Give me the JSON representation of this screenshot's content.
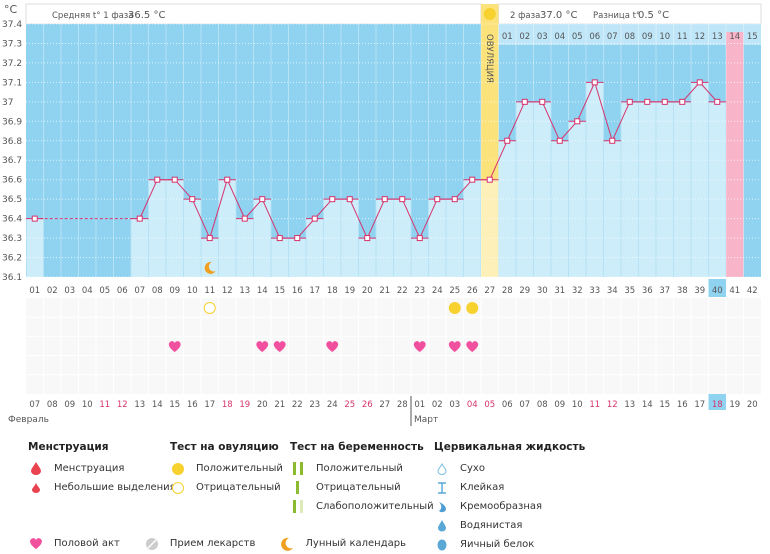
{
  "chart_data": {
    "type": "line",
    "unit_label": "°C",
    "ylim": [
      36.1,
      37.4
    ],
    "yticks": [
      "37.4",
      "37.3",
      "37.2",
      "37.1",
      "37",
      "36.9",
      "36.8",
      "36.7",
      "36.6",
      "36.5",
      "36.4",
      "36.3",
      "36.2",
      "36.1"
    ],
    "cycle_days": [
      "01",
      "02",
      "03",
      "04",
      "05",
      "06",
      "07",
      "08",
      "09",
      "10",
      "11",
      "12",
      "13",
      "14",
      "15",
      "16",
      "17",
      "18",
      "19",
      "20",
      "21",
      "22",
      "23",
      "24",
      "25",
      "26",
      "27",
      "28",
      "29",
      "30",
      "31",
      "32",
      "33",
      "34",
      "35",
      "36",
      "37",
      "38",
      "39",
      "40",
      "41",
      "42"
    ],
    "temperatures": [
      36.4,
      null,
      null,
      null,
      null,
      null,
      36.4,
      36.6,
      36.6,
      36.5,
      36.3,
      36.6,
      36.4,
      36.5,
      36.3,
      36.3,
      36.4,
      36.5,
      36.5,
      36.3,
      36.5,
      36.5,
      36.3,
      36.5,
      36.5,
      36.6,
      36.6,
      36.8,
      37.0,
      37.0,
      36.8,
      36.9,
      37.1,
      36.8,
      37.0,
      37.0,
      37.0,
      37.0,
      37.1,
      37.0,
      null,
      null
    ],
    "ovulation_day": 27,
    "ovulation_label": "ОВУЛЯЦИЯ",
    "luteal_days": [
      "01",
      "02",
      "03",
      "04",
      "05",
      "06",
      "07",
      "08",
      "09",
      "10",
      "11",
      "12",
      "13",
      "14",
      "15"
    ],
    "expected_period_day": 41,
    "today_day": 40,
    "phase1_label": "Средняя t° 1 фаза",
    "phase1_value": "36.5 °C",
    "phase2_label": "2 фаза",
    "phase2_value": "37.0 °C",
    "diff_label": "Разница t°",
    "diff_value": "0.5 °C",
    "moon_days": [
      11
    ],
    "ovulation_test_negative_days": [
      11
    ],
    "ovulation_test_positive_days": [
      25,
      26
    ],
    "intercourse_days": [
      9,
      14,
      15,
      18,
      23,
      25,
      26
    ],
    "dates": [
      "07",
      "08",
      "09",
      "10",
      "11",
      "12",
      "13",
      "14",
      "15",
      "16",
      "17",
      "18",
      "19",
      "20",
      "21",
      "22",
      "23",
      "24",
      "25",
      "26",
      "27",
      "28",
      "01",
      "02",
      "03",
      "04",
      "05",
      "06",
      "07",
      "08",
      "09",
      "10",
      "11",
      "12",
      "13",
      "14",
      "15",
      "16",
      "17",
      "18",
      "19",
      "20"
    ],
    "weekend_dates_idx": [
      4,
      5,
      11,
      12,
      18,
      19,
      25,
      26,
      32,
      33,
      39
    ],
    "months": [
      {
        "name": "Февраль",
        "start": 1
      },
      {
        "name": "Март",
        "start": 23
      }
    ],
    "colors": {
      "background": "#8fd3f1",
      "bar": "#cdedfa",
      "line": "#d6336c",
      "ovulation": "#fbe27a",
      "period": "#f8b4c8",
      "heart": "#f0509e",
      "test": "#f7d22f",
      "weekend": "#d6336c"
    }
  },
  "legend": {
    "menstruation": {
      "title": "Менструация",
      "items": [
        "Менструация",
        "Небольшие выделения"
      ]
    },
    "ovulation_test": {
      "title": "Тест на овуляцию",
      "items": [
        "Положительный",
        "Отрицательный"
      ]
    },
    "pregnancy_test": {
      "title": "Тест на беременность",
      "items": [
        "Положительный",
        "Отрицательный",
        "Слабоположительный"
      ]
    },
    "cervical": {
      "title": "Цервикальная жидкость",
      "items": [
        "Сухо",
        "Клейкая",
        "Кремообразная",
        "Водянистая",
        "Яичный белок"
      ]
    },
    "bottom": [
      "Половой акт",
      "Прием лекарств",
      "Лунный календарь"
    ]
  }
}
